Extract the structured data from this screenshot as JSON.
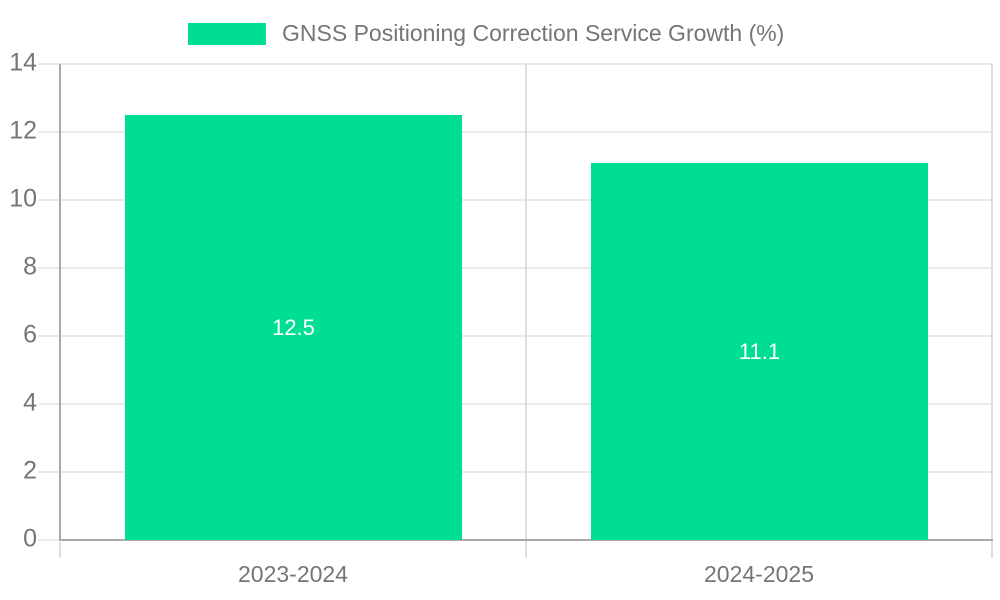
{
  "chart_data": {
    "type": "bar",
    "legend": "GNSS Positioning Correction Service Growth (%)",
    "legend_position": "top-center",
    "categories": [
      "2023-2024",
      "2024-2025"
    ],
    "values": [
      12.5,
      11.1
    ],
    "value_labels": [
      "12.5",
      "11.1"
    ],
    "yticks": [
      0,
      2,
      4,
      6,
      8,
      10,
      12,
      14
    ],
    "ylim": [
      0,
      14
    ],
    "xlabel": "",
    "ylabel": "",
    "grid": true,
    "colors": {
      "bar": "#00DD94",
      "grid": "#EAEAEA",
      "separator": "#DEDEDE",
      "axis": "#A9A9A9",
      "tick_text": "#757575",
      "legend_text": "#757575",
      "bar_label_text": "#FFFFFF",
      "background": "#FFFFFF"
    }
  }
}
